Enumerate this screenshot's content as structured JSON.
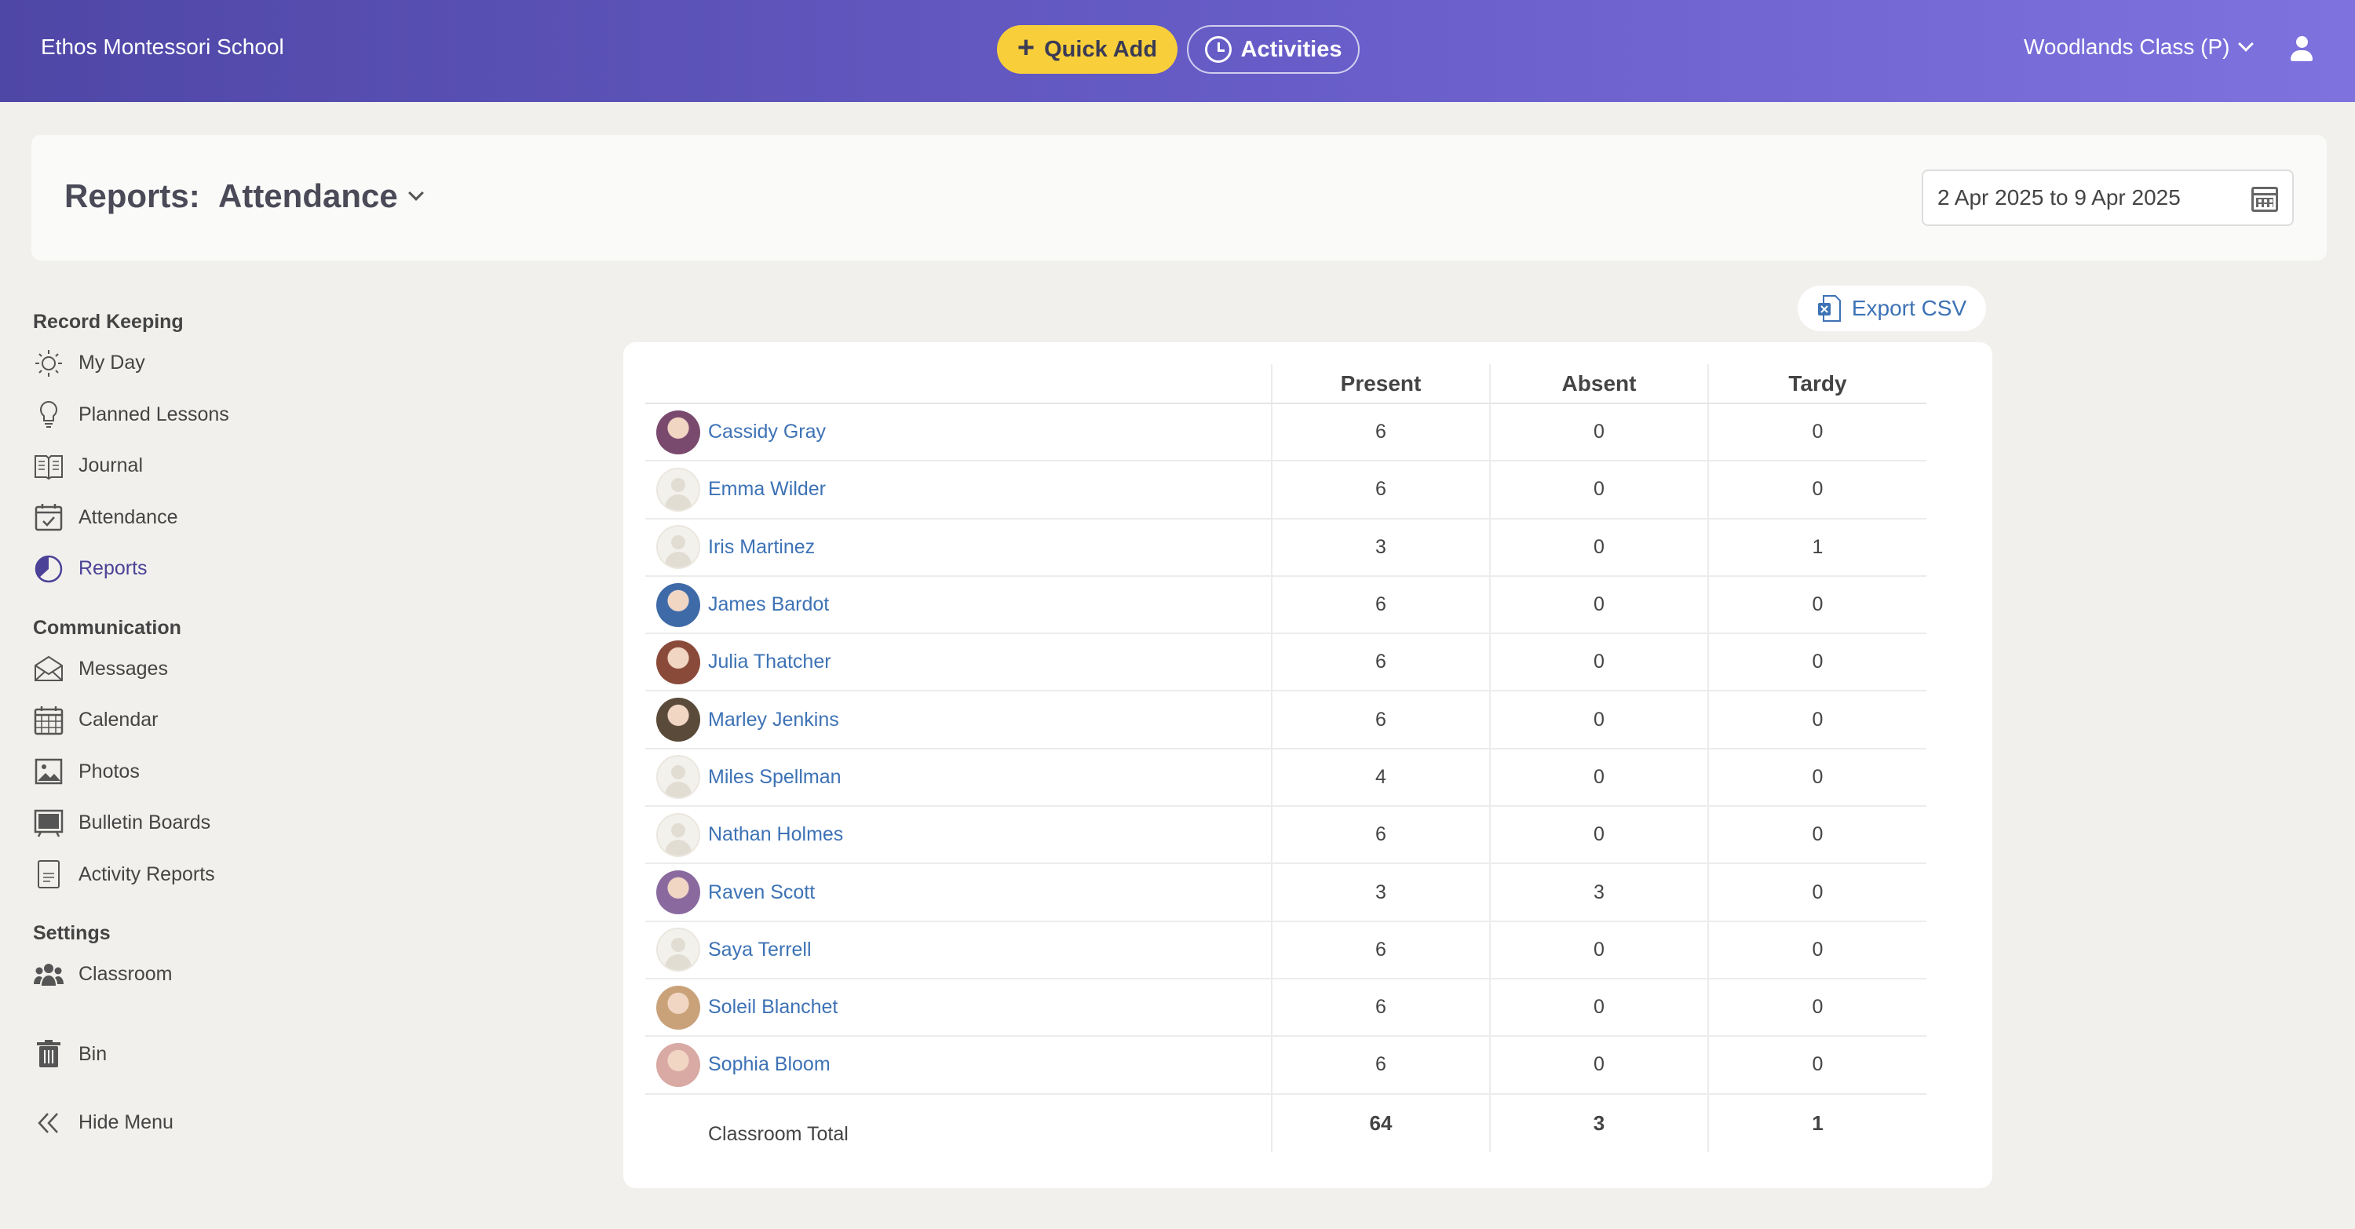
{
  "header": {
    "school_name": "Ethos Montessori School",
    "quick_add_label": "Quick Add",
    "activities_label": "Activities",
    "class_select": "Woodlands Class (P)"
  },
  "report": {
    "label": "Reports:",
    "type": "Attendance",
    "date_range": "2 Apr 2025 to 9 Apr 2025",
    "export_label": "Export CSV"
  },
  "sidebar": {
    "sections": [
      {
        "title": "Record Keeping",
        "items": [
          {
            "label": "My Day",
            "icon": "sun-icon"
          },
          {
            "label": "Planned Lessons",
            "icon": "lightbulb-icon"
          },
          {
            "label": "Journal",
            "icon": "book-icon"
          },
          {
            "label": "Attendance",
            "icon": "calendar-check-icon"
          },
          {
            "label": "Reports",
            "icon": "pie-chart-icon",
            "active": true
          }
        ]
      },
      {
        "title": "Communication",
        "items": [
          {
            "label": "Messages",
            "icon": "envelope-icon"
          },
          {
            "label": "Calendar",
            "icon": "calendar-icon"
          },
          {
            "label": "Photos",
            "icon": "photo-icon"
          },
          {
            "label": "Bulletin Boards",
            "icon": "board-icon"
          },
          {
            "label": "Activity Reports",
            "icon": "document-icon"
          }
        ]
      },
      {
        "title": "Settings",
        "items": [
          {
            "label": "Classroom",
            "icon": "people-icon"
          }
        ]
      }
    ],
    "bin_label": "Bin",
    "hide_menu_label": "Hide Menu"
  },
  "table": {
    "columns": [
      "",
      "Present",
      "Absent",
      "Tardy"
    ],
    "rows": [
      {
        "name": "Cassidy Gray",
        "present": "6",
        "absent": "0",
        "tardy": "0",
        "avatar": "#7a4a6e"
      },
      {
        "name": "Emma Wilder",
        "present": "6",
        "absent": "0",
        "tardy": "0",
        "avatar": ""
      },
      {
        "name": "Iris Martinez",
        "present": "3",
        "absent": "0",
        "tardy": "1",
        "avatar": ""
      },
      {
        "name": "James Bardot",
        "present": "6",
        "absent": "0",
        "tardy": "0",
        "avatar": "#3f6aa8"
      },
      {
        "name": "Julia Thatcher",
        "present": "6",
        "absent": "0",
        "tardy": "0",
        "avatar": "#8a4a3a"
      },
      {
        "name": "Marley Jenkins",
        "present": "6",
        "absent": "0",
        "tardy": "0",
        "avatar": "#5a4a3a"
      },
      {
        "name": "Miles Spellman",
        "present": "4",
        "absent": "0",
        "tardy": "0",
        "avatar": ""
      },
      {
        "name": "Nathan Holmes",
        "present": "6",
        "absent": "0",
        "tardy": "0",
        "avatar": ""
      },
      {
        "name": "Raven Scott",
        "present": "3",
        "absent": "3",
        "tardy": "0",
        "avatar": "#8a6a9e"
      },
      {
        "name": "Saya Terrell",
        "present": "6",
        "absent": "0",
        "tardy": "0",
        "avatar": ""
      },
      {
        "name": "Soleil Blanchet",
        "present": "6",
        "absent": "0",
        "tardy": "0",
        "avatar": "#c9a27a"
      },
      {
        "name": "Sophia Bloom",
        "present": "6",
        "absent": "0",
        "tardy": "0",
        "avatar": "#d9a9a4"
      }
    ],
    "total": {
      "label": "Classroom Total",
      "present": "64",
      "absent": "3",
      "tardy": "1"
    }
  }
}
